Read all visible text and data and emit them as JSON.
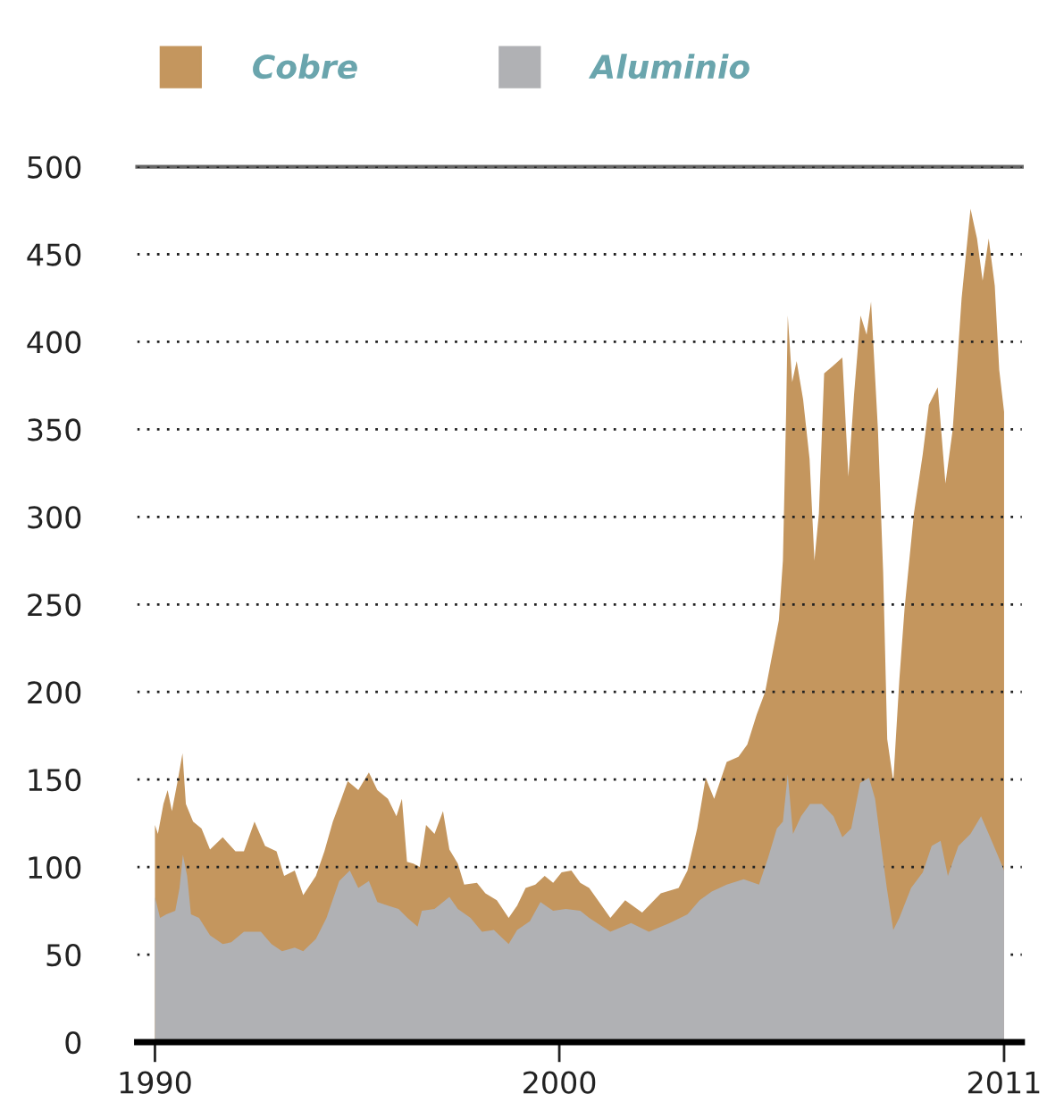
{
  "chart_data": {
    "type": "area",
    "xlim": [
      1989.56,
      2011.44
    ],
    "xticks": [
      1990,
      2000,
      2011
    ],
    "ylim": [
      0,
      500
    ],
    "yticks": [
      0,
      50,
      100,
      150,
      200,
      250,
      300,
      350,
      400,
      450,
      500
    ],
    "grid": "y",
    "legend": "top left",
    "series": [
      {
        "name": "Cobre",
        "color": "#c4965e",
        "x": [
          1990.0,
          1990.073,
          1990.21,
          1990.314,
          1990.419,
          1990.576,
          1990.681,
          1990.765,
          1990.943,
          1991.152,
          1991.362,
          1991.676,
          1991.991,
          1992.2,
          1992.462,
          1992.724,
          1993.007,
          1993.195,
          1993.457,
          1993.667,
          1993.981,
          1994.191,
          1994.4,
          1994.61,
          1994.767,
          1995.029,
          1995.291,
          1995.5,
          1995.762,
          1995.972,
          1996.108,
          1996.234,
          1996.391,
          1996.548,
          1996.705,
          1996.915,
          1997.124,
          1997.282,
          1997.491,
          1997.648,
          1997.963,
          1998.172,
          1998.455,
          1998.748,
          1998.958,
          1999.167,
          1999.408,
          1999.639,
          1999.848,
          2000.058,
          2000.299,
          2000.519,
          2000.739,
          2001.263,
          2001.629,
          2002.049,
          2002.51,
          2002.95,
          2003.17,
          2003.41,
          2003.62,
          2003.83,
          2004.14,
          2004.43,
          2004.65,
          2004.88,
          2005.09,
          2005.23,
          2005.43,
          2005.53,
          2005.61,
          2005.65,
          2005.76,
          2005.87,
          2006.03,
          2006.19,
          2006.31,
          2006.42,
          2006.55,
          2006.76,
          2007.0,
          2007.15,
          2007.29,
          2007.45,
          2007.6,
          2007.71,
          2007.88,
          2008.01,
          2008.11,
          2008.26,
          2008.41,
          2008.54,
          2008.77,
          2008.99,
          2009.14,
          2009.36,
          2009.55,
          2009.73,
          2009.95,
          2010.17,
          2010.33,
          2010.47,
          2010.62,
          2010.77,
          2010.88,
          2011.0
        ],
        "values": [
          124,
          119,
          136,
          144,
          132,
          151,
          165,
          136,
          126,
          122,
          110,
          117,
          109,
          109,
          126,
          112,
          109,
          95,
          98,
          84,
          95,
          109,
          126,
          139,
          149,
          144,
          154,
          144,
          139,
          129,
          139,
          103,
          102,
          100,
          124,
          119,
          132,
          110,
          102,
          90,
          91,
          85,
          81,
          71,
          78,
          88,
          90,
          95,
          91,
          97,
          98,
          91,
          88,
          71,
          81,
          74,
          85,
          88,
          98,
          122,
          151,
          139,
          160,
          163,
          170,
          187,
          200,
          217,
          241,
          275,
          360,
          415,
          377,
          389,
          367,
          333,
          275,
          302,
          382,
          386,
          391,
          323,
          370,
          415,
          404,
          423,
          350,
          268,
          173,
          149,
          207,
          248,
          302,
          336,
          364,
          374,
          319,
          350,
          425,
          476,
          459,
          435,
          459,
          432,
          384,
          360
        ]
      },
      {
        "name": "Aluminio",
        "color": "#b0b1b4",
        "x": [
          1990.0,
          1990.126,
          1990.283,
          1990.503,
          1990.608,
          1990.691,
          1990.796,
          1990.891,
          1991.09,
          1991.362,
          1991.676,
          1991.886,
          1992.2,
          1992.619,
          1992.881,
          1993.143,
          1993.457,
          1993.667,
          1993.981,
          1994.243,
          1994.557,
          1994.819,
          1995.029,
          1995.291,
          1995.5,
          1995.762,
          1996.024,
          1996.244,
          1996.496,
          1996.601,
          1996.915,
          1997.282,
          1997.491,
          1997.805,
          1998.088,
          1998.382,
          1998.748,
          1998.958,
          1999.272,
          1999.534,
          1999.848,
          2000.163,
          2000.519,
          2000.739,
          2001.263,
          2001.776,
          2002.216,
          2002.73,
          2003.17,
          2003.47,
          2003.77,
          2004.14,
          2004.56,
          2004.94,
          2005.16,
          2005.38,
          2005.53,
          2005.65,
          2005.78,
          2005.98,
          2006.2,
          2006.49,
          2006.78,
          2007.0,
          2007.22,
          2007.44,
          2007.66,
          2007.81,
          2007.96,
          2008.1,
          2008.26,
          2008.41,
          2008.7,
          2008.99,
          2009.21,
          2009.43,
          2009.61,
          2009.87,
          2010.17,
          2010.43,
          2010.62,
          2010.84,
          2011.0
        ],
        "values": [
          83,
          71,
          73,
          75,
          88,
          107,
          95,
          73,
          71,
          61,
          56,
          57,
          63,
          63,
          56,
          52,
          54,
          52,
          59,
          71,
          92,
          98,
          88,
          92,
          80,
          78,
          76,
          71,
          66,
          75,
          76,
          83,
          76,
          71,
          63,
          64,
          56,
          64,
          69,
          80,
          75,
          76,
          75,
          71,
          63,
          68,
          63,
          68,
          73,
          81,
          86,
          90,
          93,
          90,
          105,
          122,
          126,
          153,
          119,
          129,
          136,
          136,
          129,
          117,
          122,
          148,
          151,
          139,
          112,
          88,
          64,
          71,
          88,
          97,
          112,
          115,
          95,
          112,
          119,
          129,
          119,
          107,
          98
        ]
      }
    ]
  }
}
